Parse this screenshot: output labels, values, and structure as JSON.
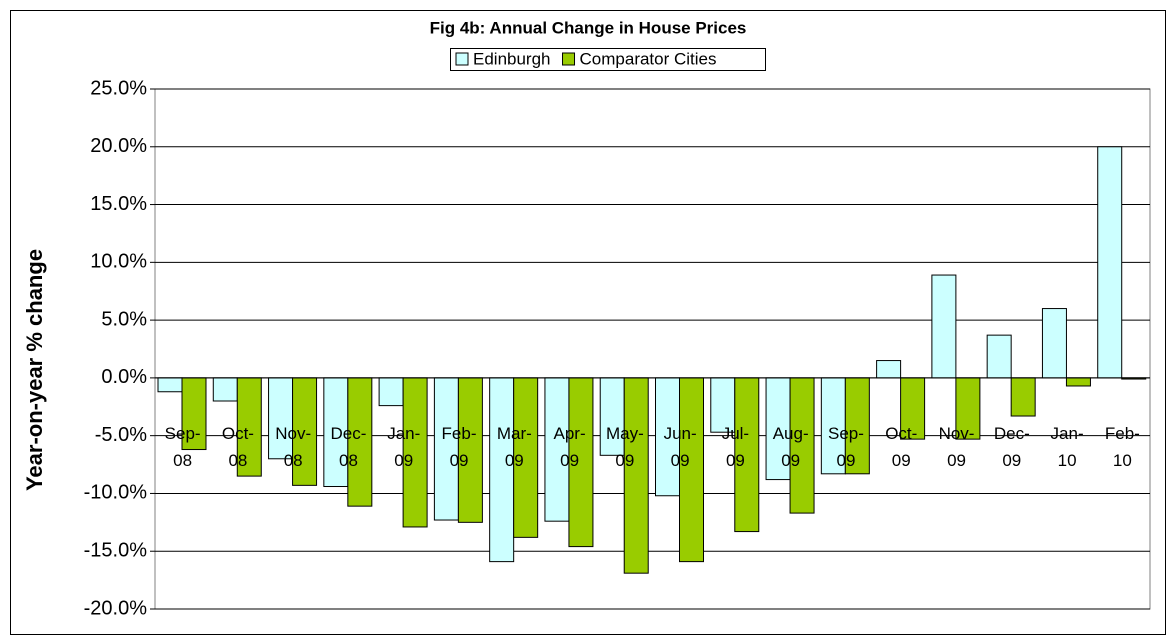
{
  "chart_data": {
    "type": "bar",
    "title": "Fig 4b: Annual Change in House Prices",
    "y_label": "Year-on-year % change",
    "categories": [
      "Sep-08",
      "Oct-08",
      "Nov-08",
      "Dec-08",
      "Jan-09",
      "Feb-09",
      "Mar-09",
      "Apr-09",
      "May-09",
      "Jun-09",
      "Jul-09",
      "Aug-09",
      "Sep-09",
      "Oct-09",
      "Nov-09",
      "Dec-09",
      "Jan-10",
      "Feb-10"
    ],
    "series": [
      {
        "name": "Edinburgh",
        "color": "#ccffff",
        "values": [
          -1.2,
          -2.0,
          -7.0,
          -9.4,
          -2.4,
          -12.3,
          -15.9,
          -12.4,
          -6.7,
          -10.2,
          -4.7,
          -8.8,
          -8.3,
          1.5,
          8.9,
          3.7,
          6.0,
          20.0
        ]
      },
      {
        "name": "Comparator Cities",
        "color": "#99cc00",
        "values": [
          -6.2,
          -8.5,
          -9.3,
          -11.1,
          -12.9,
          -12.5,
          -13.8,
          -14.6,
          -16.9,
          -15.9,
          -13.3,
          -11.7,
          -8.3,
          -5.3,
          -5.3,
          -3.3,
          -0.7,
          -0.1
        ]
      }
    ],
    "ylim": [
      -20,
      25
    ],
    "yticks": [
      {
        "value": -20,
        "label": "-20.0%"
      },
      {
        "value": -15,
        "label": "-15.0%"
      },
      {
        "value": -10,
        "label": "-10.0%"
      },
      {
        "value": -5,
        "label": "-5.0%"
      },
      {
        "value": 0,
        "label": "0.0%"
      },
      {
        "value": 5,
        "label": "5.0%"
      },
      {
        "value": 10,
        "label": "10.0%"
      },
      {
        "value": 15,
        "label": "15.0%"
      },
      {
        "value": 20,
        "label": "20.0%"
      },
      {
        "value": 25,
        "label": "25.0%"
      }
    ],
    "grid": true,
    "legend": "top"
  }
}
